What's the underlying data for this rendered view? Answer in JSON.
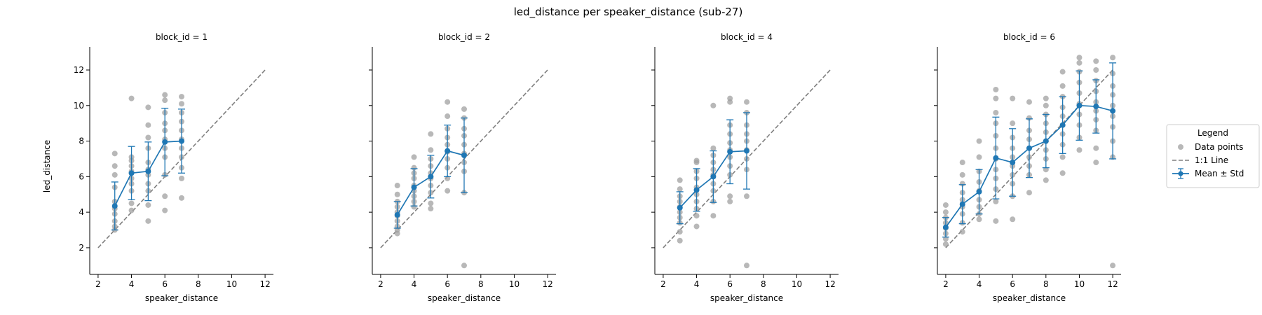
{
  "figure": {
    "suptitle": "led_distance per speaker_distance (sub-27)"
  },
  "legend": {
    "title": "Legend",
    "placement": "outside-right",
    "items": [
      {
        "label": "Data points",
        "marker": "circle",
        "color": "#a0a0a0"
      },
      {
        "label": "1:1 Line",
        "marker": "dashed-line",
        "color": "#7f7f7f"
      },
      {
        "label": "Mean ± Std",
        "marker": "errorbar-line",
        "color": "#1f77b4"
      }
    ]
  },
  "colors": {
    "points": "#a0a0a0",
    "mean": "#1f77b4",
    "identity": "#7f7f7f"
  },
  "chart_data": [
    {
      "type": "scatter",
      "title": "block_id = 1",
      "xlabel": "speaker_distance",
      "ylabel": "led_distance",
      "xlim": [
        1.5,
        12.5
      ],
      "ylim": [
        0.5,
        13.3
      ],
      "xticks": [
        2,
        4,
        6,
        8,
        10,
        12
      ],
      "yticks": [
        2,
        4,
        6,
        8,
        10,
        12
      ],
      "identity_line": [
        [
          2,
          2
        ],
        [
          12,
          12
        ]
      ],
      "points": [
        [
          3,
          3.0
        ],
        [
          3,
          3.2
        ],
        [
          3,
          3.5
        ],
        [
          3,
          3.9
        ],
        [
          3,
          4.2
        ],
        [
          3,
          4.6
        ],
        [
          3,
          5.4
        ],
        [
          3,
          6.1
        ],
        [
          3,
          6.6
        ],
        [
          3,
          7.3
        ],
        [
          4,
          4.1
        ],
        [
          4,
          4.5
        ],
        [
          4,
          5.2
        ],
        [
          4,
          5.6
        ],
        [
          4,
          5.9
        ],
        [
          4,
          6.3
        ],
        [
          4,
          6.6
        ],
        [
          4,
          6.9
        ],
        [
          4,
          7.1
        ],
        [
          4,
          10.4
        ],
        [
          5,
          3.5
        ],
        [
          5,
          4.4
        ],
        [
          5,
          5.2
        ],
        [
          5,
          5.6
        ],
        [
          5,
          6.1
        ],
        [
          5,
          6.4
        ],
        [
          5,
          6.8
        ],
        [
          5,
          7.6
        ],
        [
          5,
          8.2
        ],
        [
          5,
          8.9
        ],
        [
          5,
          9.9
        ],
        [
          6,
          4.1
        ],
        [
          6,
          4.9
        ],
        [
          6,
          6.1
        ],
        [
          6,
          7.1
        ],
        [
          6,
          7.6
        ],
        [
          6,
          8.1
        ],
        [
          6,
          8.6
        ],
        [
          6,
          9.0
        ],
        [
          6,
          9.6
        ],
        [
          6,
          10.3
        ],
        [
          6,
          10.6
        ],
        [
          7,
          4.8
        ],
        [
          7,
          5.9
        ],
        [
          7,
          6.5
        ],
        [
          7,
          7.1
        ],
        [
          7,
          7.6
        ],
        [
          7,
          8.1
        ],
        [
          7,
          8.6
        ],
        [
          7,
          9.1
        ],
        [
          7,
          9.6
        ],
        [
          7,
          10.1
        ],
        [
          7,
          10.5
        ]
      ],
      "mean": {
        "x": [
          3,
          4,
          5,
          6,
          7
        ],
        "y": [
          4.35,
          6.2,
          6.3,
          7.95,
          8.0
        ],
        "std": [
          1.35,
          1.5,
          1.65,
          1.9,
          1.8
        ]
      }
    },
    {
      "type": "scatter",
      "title": "block_id = 2",
      "xlabel": "speaker_distance",
      "ylabel": "",
      "xlim": [
        1.5,
        12.5
      ],
      "ylim": [
        0.5,
        13.3
      ],
      "xticks": [
        2,
        4,
        6,
        8,
        10,
        12
      ],
      "yticks": [
        2,
        4,
        6,
        8,
        10,
        12
      ],
      "identity_line": [
        [
          2,
          2
        ],
        [
          12,
          12
        ]
      ],
      "points": [
        [
          3,
          2.8
        ],
        [
          3,
          3.0
        ],
        [
          3,
          3.2
        ],
        [
          3,
          3.5
        ],
        [
          3,
          3.8
        ],
        [
          3,
          4.0
        ],
        [
          3,
          4.3
        ],
        [
          3,
          4.6
        ],
        [
          3,
          5.0
        ],
        [
          3,
          5.5
        ],
        [
          4,
          4.3
        ],
        [
          4,
          4.6
        ],
        [
          4,
          4.9
        ],
        [
          4,
          5.2
        ],
        [
          4,
          5.5
        ],
        [
          4,
          5.9
        ],
        [
          4,
          6.2
        ],
        [
          4,
          6.5
        ],
        [
          4,
          7.1
        ],
        [
          5,
          4.2
        ],
        [
          5,
          4.5
        ],
        [
          5,
          5.1
        ],
        [
          5,
          5.5
        ],
        [
          5,
          5.9
        ],
        [
          5,
          6.2
        ],
        [
          5,
          6.6
        ],
        [
          5,
          7.0
        ],
        [
          5,
          7.5
        ],
        [
          5,
          8.4
        ],
        [
          6,
          5.2
        ],
        [
          6,
          5.9
        ],
        [
          6,
          6.5
        ],
        [
          6,
          7.0
        ],
        [
          6,
          7.4
        ],
        [
          6,
          7.8
        ],
        [
          6,
          8.2
        ],
        [
          6,
          8.7
        ],
        [
          6,
          9.4
        ],
        [
          6,
          10.2
        ],
        [
          7,
          1.0
        ],
        [
          7,
          5.1
        ],
        [
          7,
          6.3
        ],
        [
          7,
          6.8
        ],
        [
          7,
          7.3
        ],
        [
          7,
          7.8
        ],
        [
          7,
          8.3
        ],
        [
          7,
          8.7
        ],
        [
          7,
          9.3
        ],
        [
          7,
          9.8
        ]
      ],
      "mean": {
        "x": [
          3,
          4,
          5,
          6,
          7
        ],
        "y": [
          3.85,
          5.4,
          6.0,
          7.45,
          7.2
        ],
        "std": [
          0.75,
          1.05,
          1.2,
          1.45,
          2.1
        ]
      }
    },
    {
      "type": "scatter",
      "title": "block_id = 4",
      "xlabel": "speaker_distance",
      "ylabel": "",
      "xlim": [
        1.5,
        12.5
      ],
      "ylim": [
        0.5,
        13.3
      ],
      "xticks": [
        2,
        4,
        6,
        8,
        10,
        12
      ],
      "yticks": [
        2,
        4,
        6,
        8,
        10,
        12
      ],
      "identity_line": [
        [
          2,
          2
        ],
        [
          12,
          12
        ]
      ],
      "points": [
        [
          3,
          2.4
        ],
        [
          3,
          2.9
        ],
        [
          3,
          3.4
        ],
        [
          3,
          3.7
        ],
        [
          3,
          4.0
        ],
        [
          3,
          4.3
        ],
        [
          3,
          4.6
        ],
        [
          3,
          4.9
        ],
        [
          3,
          5.3
        ],
        [
          3,
          5.8
        ],
        [
          4,
          3.2
        ],
        [
          4,
          3.8
        ],
        [
          4,
          4.2
        ],
        [
          4,
          4.6
        ],
        [
          4,
          5.0
        ],
        [
          4,
          5.4
        ],
        [
          4,
          5.9
        ],
        [
          4,
          6.3
        ],
        [
          4,
          6.8
        ],
        [
          4,
          6.9
        ],
        [
          5,
          3.8
        ],
        [
          5,
          4.6
        ],
        [
          5,
          5.2
        ],
        [
          5,
          5.6
        ],
        [
          5,
          6.1
        ],
        [
          5,
          6.4
        ],
        [
          5,
          6.8
        ],
        [
          5,
          7.2
        ],
        [
          5,
          7.6
        ],
        [
          5,
          10.0
        ],
        [
          6,
          4.6
        ],
        [
          6,
          4.9
        ],
        [
          6,
          6.1
        ],
        [
          6,
          6.6
        ],
        [
          6,
          7.1
        ],
        [
          6,
          7.5
        ],
        [
          6,
          7.9
        ],
        [
          6,
          8.4
        ],
        [
          6,
          8.9
        ],
        [
          6,
          10.2
        ],
        [
          6,
          10.4
        ],
        [
          7,
          1.0
        ],
        [
          7,
          4.9
        ],
        [
          7,
          6.4
        ],
        [
          7,
          7.0
        ],
        [
          7,
          7.5
        ],
        [
          7,
          8.0
        ],
        [
          7,
          8.4
        ],
        [
          7,
          8.9
        ],
        [
          7,
          9.6
        ],
        [
          7,
          10.2
        ]
      ],
      "mean": {
        "x": [
          3,
          4,
          5,
          6,
          7
        ],
        "y": [
          4.25,
          5.25,
          6.0,
          7.4,
          7.45
        ],
        "std": [
          0.9,
          1.2,
          1.45,
          1.8,
          2.15
        ]
      }
    },
    {
      "type": "scatter",
      "title": "block_id = 6",
      "xlabel": "speaker_distance",
      "ylabel": "",
      "xlim": [
        1.5,
        12.5
      ],
      "ylim": [
        0.5,
        13.3
      ],
      "xticks": [
        2,
        4,
        6,
        8,
        10,
        12
      ],
      "yticks": [
        2,
        4,
        6,
        8,
        10,
        12
      ],
      "identity_line": [
        [
          2,
          2
        ],
        [
          12,
          12
        ]
      ],
      "points": [
        [
          2,
          2.2
        ],
        [
          2,
          2.5
        ],
        [
          2,
          2.8
        ],
        [
          2,
          3.1
        ],
        [
          2,
          3.4
        ],
        [
          2,
          3.7
        ],
        [
          2,
          4.0
        ],
        [
          2,
          4.4
        ],
        [
          3,
          2.9
        ],
        [
          3,
          3.4
        ],
        [
          3,
          3.9
        ],
        [
          3,
          4.3
        ],
        [
          3,
          4.7
        ],
        [
          3,
          5.1
        ],
        [
          3,
          5.6
        ],
        [
          3,
          6.1
        ],
        [
          3,
          6.8
        ],
        [
          4,
          3.6
        ],
        [
          4,
          3.9
        ],
        [
          4,
          4.3
        ],
        [
          4,
          4.7
        ],
        [
          4,
          5.2
        ],
        [
          4,
          5.7
        ],
        [
          4,
          6.3
        ],
        [
          4,
          7.1
        ],
        [
          4,
          8.0
        ],
        [
          5,
          3.5
        ],
        [
          5,
          4.6
        ],
        [
          5,
          5.3
        ],
        [
          5,
          5.9
        ],
        [
          5,
          6.4
        ],
        [
          5,
          7.0
        ],
        [
          5,
          7.6
        ],
        [
          5,
          8.3
        ],
        [
          5,
          9.0
        ],
        [
          5,
          9.6
        ],
        [
          5,
          10.4
        ],
        [
          5,
          10.9
        ],
        [
          6,
          3.6
        ],
        [
          6,
          4.9
        ],
        [
          6,
          5.6
        ],
        [
          6,
          6.1
        ],
        [
          6,
          6.6
        ],
        [
          6,
          7.1
        ],
        [
          6,
          7.6
        ],
        [
          6,
          8.2
        ],
        [
          6,
          9.0
        ],
        [
          6,
          10.4
        ],
        [
          7,
          5.1
        ],
        [
          7,
          6.1
        ],
        [
          7,
          6.6
        ],
        [
          7,
          7.1
        ],
        [
          7,
          7.6
        ],
        [
          7,
          8.1
        ],
        [
          7,
          8.6
        ],
        [
          7,
          9.3
        ],
        [
          7,
          10.2
        ],
        [
          8,
          5.8
        ],
        [
          8,
          6.4
        ],
        [
          8,
          7.0
        ],
        [
          8,
          7.5
        ],
        [
          8,
          8.0
        ],
        [
          8,
          8.5
        ],
        [
          8,
          9.0
        ],
        [
          8,
          9.5
        ],
        [
          8,
          10.0
        ],
        [
          8,
          10.4
        ],
        [
          9,
          6.2
        ],
        [
          9,
          7.1
        ],
        [
          9,
          7.8
        ],
        [
          9,
          8.4
        ],
        [
          9,
          8.9
        ],
        [
          9,
          9.4
        ],
        [
          9,
          9.9
        ],
        [
          9,
          10.5
        ],
        [
          9,
          11.1
        ],
        [
          9,
          11.9
        ],
        [
          10,
          7.5
        ],
        [
          10,
          8.2
        ],
        [
          10,
          8.9
        ],
        [
          10,
          9.5
        ],
        [
          10,
          10.1
        ],
        [
          10,
          10.7
        ],
        [
          10,
          11.3
        ],
        [
          10,
          11.9
        ],
        [
          10,
          12.4
        ],
        [
          10,
          12.7
        ],
        [
          11,
          6.8
        ],
        [
          11,
          7.6
        ],
        [
          11,
          8.6
        ],
        [
          11,
          9.2
        ],
        [
          11,
          9.7
        ],
        [
          11,
          10.2
        ],
        [
          11,
          10.8
        ],
        [
          11,
          11.4
        ],
        [
          11,
          12.0
        ],
        [
          11,
          12.5
        ],
        [
          12,
          1.0
        ],
        [
          12,
          7.1
        ],
        [
          12,
          8.0
        ],
        [
          12,
          8.8
        ],
        [
          12,
          9.4
        ],
        [
          12,
          10.0
        ],
        [
          12,
          10.6
        ],
        [
          12,
          11.1
        ],
        [
          12,
          11.8
        ],
        [
          12,
          12.7
        ]
      ],
      "mean": {
        "x": [
          2,
          3,
          4,
          5,
          6,
          7,
          8,
          9,
          10,
          11,
          12
        ],
        "y": [
          3.15,
          4.45,
          5.15,
          7.05,
          6.8,
          7.6,
          8.0,
          8.9,
          10.0,
          9.95,
          9.7
        ],
        "std": [
          0.55,
          1.1,
          1.25,
          2.3,
          1.9,
          1.65,
          1.5,
          1.6,
          1.95,
          1.5,
          2.7
        ]
      }
    }
  ]
}
